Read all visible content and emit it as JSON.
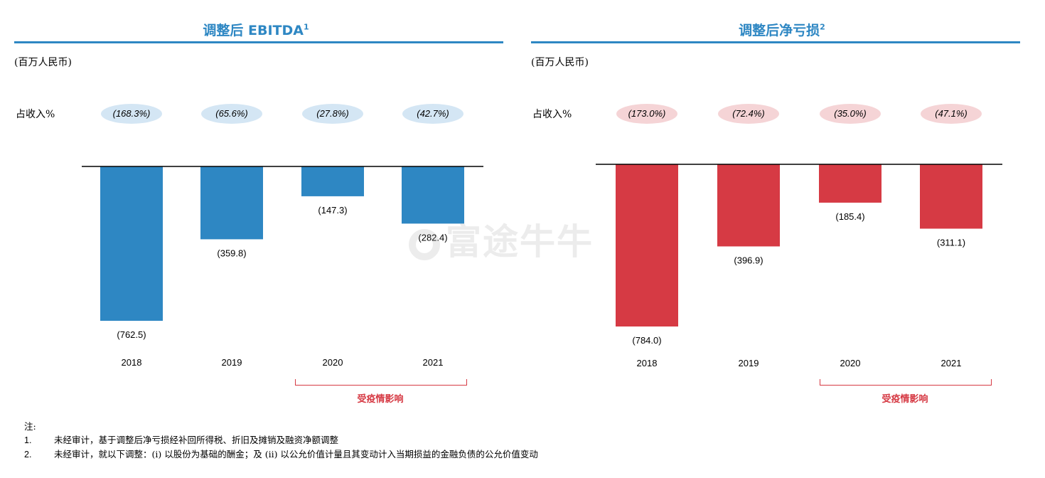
{
  "notes": {
    "title": "注:",
    "items": [
      {
        "num": "1.",
        "text": "未经审计，基于调整后净亏损经补回所得税、折旧及摊销及融资净额调整"
      },
      {
        "num": "2.",
        "text": "未经审计，就以下调整：(i) 以股份为基础的酬金；及 (ii) 以公允价值计量且其变动计入当期损益的金融负债的公允价值变动"
      }
    ]
  },
  "watermark": "富途牛牛",
  "chart_data": [
    {
      "type": "bar",
      "title": "调整后 EBITDA",
      "title_sup": "1",
      "unit_label": "(百万人民币)",
      "pct_row_label": "占收入%",
      "categories": [
        "2018",
        "2019",
        "2020",
        "2021"
      ],
      "values": [
        -762.5,
        -359.8,
        -147.3,
        -282.4
      ],
      "value_labels": [
        "(762.5)",
        "(359.8)",
        "(147.3)",
        "(282.4)"
      ],
      "pct_of_revenue": [
        "(168.3%)",
        "(65.6%)",
        "(27.8%)",
        "(42.7%)"
      ],
      "bar_color": "#2E87C3",
      "pill_color": "#D4E6F4",
      "ylim": [
        -800,
        0
      ],
      "highlight": {
        "label": "受疫情影响",
        "categories": [
          "2020",
          "2021"
        ]
      }
    },
    {
      "type": "bar",
      "title": "调整后净亏损",
      "title_sup": "2",
      "unit_label": "(百万人民币)",
      "pct_row_label": "占收入%",
      "categories": [
        "2018",
        "2019",
        "2020",
        "2021"
      ],
      "values": [
        -784.0,
        -396.9,
        -185.4,
        -311.1
      ],
      "value_labels": [
        "(784.0)",
        "(396.9)",
        "(185.4)",
        "(311.1)"
      ],
      "pct_of_revenue": [
        "(173.0%)",
        "(72.4%)",
        "(35.0%)",
        "(47.1%)"
      ],
      "bar_color": "#D63A44",
      "pill_color": "#F5D4D6",
      "ylim": [
        -800,
        0
      ],
      "highlight": {
        "label": "受疫情影响",
        "categories": [
          "2020",
          "2021"
        ]
      }
    }
  ]
}
